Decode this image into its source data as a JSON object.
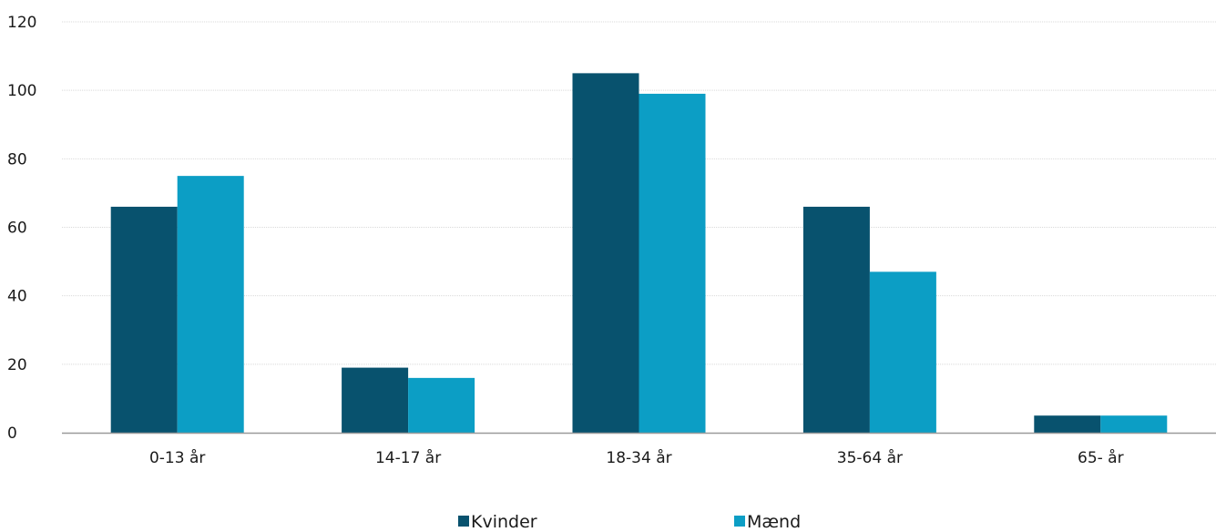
{
  "chart_data": {
    "type": "bar",
    "categories": [
      "0-13 år",
      "14-17 år",
      "18-34 år",
      "35-64 år",
      "65- år"
    ],
    "series": [
      {
        "name": "Kvinder",
        "color": "#08526e",
        "values": [
          66,
          19,
          105,
          66,
          5
        ]
      },
      {
        "name": "Mænd",
        "color": "#0c9ec5",
        "values": [
          75,
          16,
          99,
          47,
          5
        ]
      }
    ],
    "ylim": [
      0,
      120
    ],
    "yticks": [
      0,
      20,
      40,
      60,
      80,
      100,
      120
    ],
    "grid": true,
    "legend": "bottom-center",
    "title": "",
    "xlabel": "",
    "ylabel": ""
  }
}
